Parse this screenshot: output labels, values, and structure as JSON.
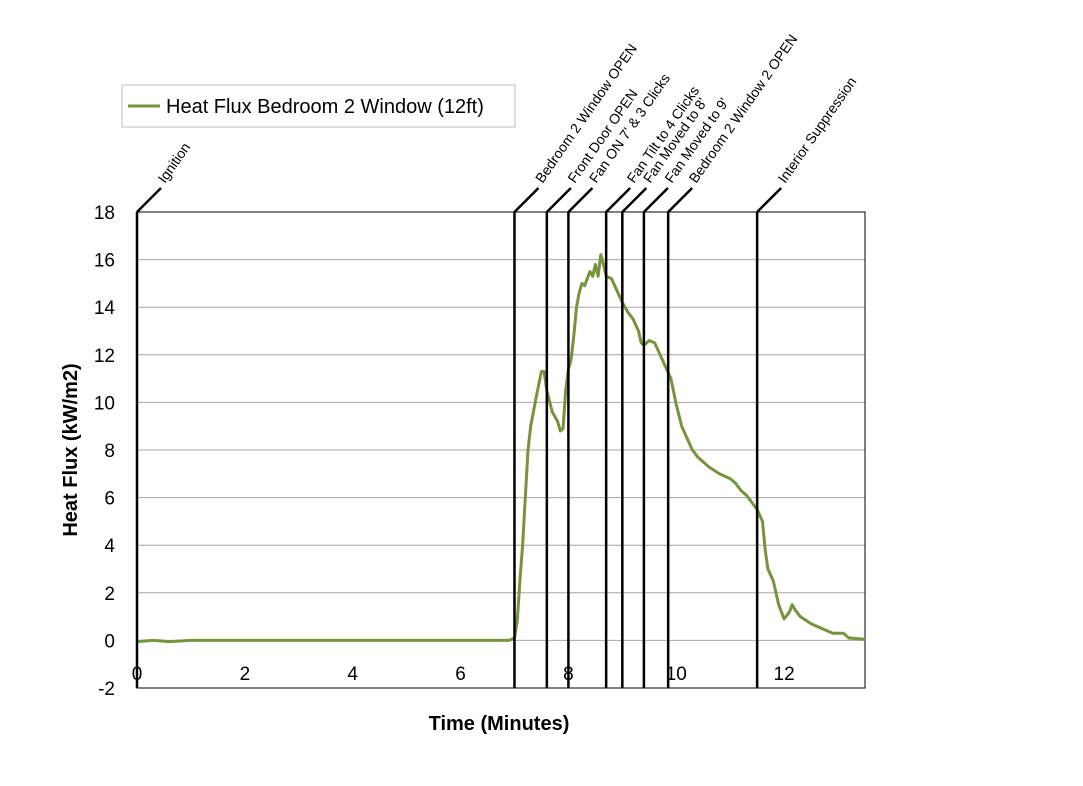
{
  "chart_data": {
    "type": "line",
    "title": "",
    "xlabel": "Time (Minutes)",
    "ylabel": "Heat Flux (kW/m2)",
    "xlim": [
      0,
      13.5
    ],
    "ylim": [
      -2,
      18
    ],
    "x_ticks": [
      0,
      2,
      4,
      6,
      8,
      10,
      12
    ],
    "y_ticks": [
      -2,
      0,
      2,
      4,
      6,
      8,
      10,
      12,
      14,
      16,
      18
    ],
    "grid": "horizontal",
    "legend_position": "top-left",
    "series": [
      {
        "name": "Heat Flux Bedroom 2 Window (12ft)",
        "color": "#77933c",
        "points": [
          [
            0.0,
            -0.05
          ],
          [
            0.3,
            0.0
          ],
          [
            0.6,
            -0.05
          ],
          [
            1.0,
            0.0
          ],
          [
            1.5,
            0.0
          ],
          [
            2.0,
            0.0
          ],
          [
            2.5,
            0.0
          ],
          [
            3.0,
            0.0
          ],
          [
            3.5,
            0.0
          ],
          [
            4.0,
            0.0
          ],
          [
            4.5,
            0.0
          ],
          [
            5.0,
            0.0
          ],
          [
            5.5,
            0.0
          ],
          [
            6.0,
            0.0
          ],
          [
            6.5,
            0.0
          ],
          [
            6.9,
            0.0
          ],
          [
            7.0,
            0.1
          ],
          [
            7.05,
            0.8
          ],
          [
            7.1,
            2.5
          ],
          [
            7.15,
            4.0
          ],
          [
            7.2,
            6.0
          ],
          [
            7.25,
            8.0
          ],
          [
            7.3,
            9.0
          ],
          [
            7.4,
            10.2
          ],
          [
            7.5,
            11.3
          ],
          [
            7.55,
            11.3
          ],
          [
            7.6,
            10.5
          ],
          [
            7.7,
            9.6
          ],
          [
            7.8,
            9.2
          ],
          [
            7.85,
            8.8
          ],
          [
            7.9,
            8.9
          ],
          [
            7.95,
            10.5
          ],
          [
            8.0,
            11.4
          ],
          [
            8.05,
            11.8
          ],
          [
            8.1,
            12.8
          ],
          [
            8.15,
            14.0
          ],
          [
            8.2,
            14.6
          ],
          [
            8.25,
            15.0
          ],
          [
            8.3,
            14.9
          ],
          [
            8.35,
            15.2
          ],
          [
            8.4,
            15.5
          ],
          [
            8.45,
            15.3
          ],
          [
            8.5,
            15.8
          ],
          [
            8.55,
            15.3
          ],
          [
            8.6,
            16.2
          ],
          [
            8.65,
            15.8
          ],
          [
            8.7,
            15.3
          ],
          [
            8.8,
            15.2
          ],
          [
            8.9,
            14.7
          ],
          [
            9.0,
            14.2
          ],
          [
            9.1,
            13.8
          ],
          [
            9.2,
            13.5
          ],
          [
            9.3,
            13.0
          ],
          [
            9.35,
            12.5
          ],
          [
            9.4,
            12.4
          ],
          [
            9.5,
            12.6
          ],
          [
            9.6,
            12.5
          ],
          [
            9.7,
            12.0
          ],
          [
            9.8,
            11.5
          ],
          [
            9.9,
            11.0
          ],
          [
            10.0,
            9.9
          ],
          [
            10.1,
            9.0
          ],
          [
            10.2,
            8.5
          ],
          [
            10.3,
            8.0
          ],
          [
            10.4,
            7.7
          ],
          [
            10.5,
            7.5
          ],
          [
            10.6,
            7.3
          ],
          [
            10.8,
            7.0
          ],
          [
            11.0,
            6.8
          ],
          [
            11.1,
            6.6
          ],
          [
            11.2,
            6.3
          ],
          [
            11.3,
            6.1
          ],
          [
            11.4,
            5.8
          ],
          [
            11.5,
            5.5
          ],
          [
            11.6,
            5.0
          ],
          [
            11.65,
            3.8
          ],
          [
            11.7,
            3.0
          ],
          [
            11.8,
            2.5
          ],
          [
            11.9,
            1.5
          ],
          [
            12.0,
            0.9
          ],
          [
            12.1,
            1.2
          ],
          [
            12.15,
            1.5
          ],
          [
            12.2,
            1.3
          ],
          [
            12.3,
            1.0
          ],
          [
            12.5,
            0.7
          ],
          [
            12.7,
            0.5
          ],
          [
            12.9,
            0.3
          ],
          [
            13.1,
            0.3
          ],
          [
            13.2,
            0.1
          ],
          [
            13.5,
            0.05
          ]
        ]
      }
    ],
    "events": [
      {
        "x": 0.0,
        "label": "Ignition"
      },
      {
        "x": 7.0,
        "label": "Bedroom 2 Window OPEN"
      },
      {
        "x": 7.6,
        "label": "Front Door OPEN"
      },
      {
        "x": 8.0,
        "label": "Fan ON 7' & 3 Clicks"
      },
      {
        "x": 8.7,
        "label": "Fan Tilt to 4 Clicks"
      },
      {
        "x": 9.0,
        "label": "Fan Moved to 8'"
      },
      {
        "x": 9.4,
        "label": "Fan Moved to 9'"
      },
      {
        "x": 9.85,
        "label": "Bedroom 2 Window 2 OPEN"
      },
      {
        "x": 11.5,
        "label": "Interior Suppression"
      }
    ]
  }
}
